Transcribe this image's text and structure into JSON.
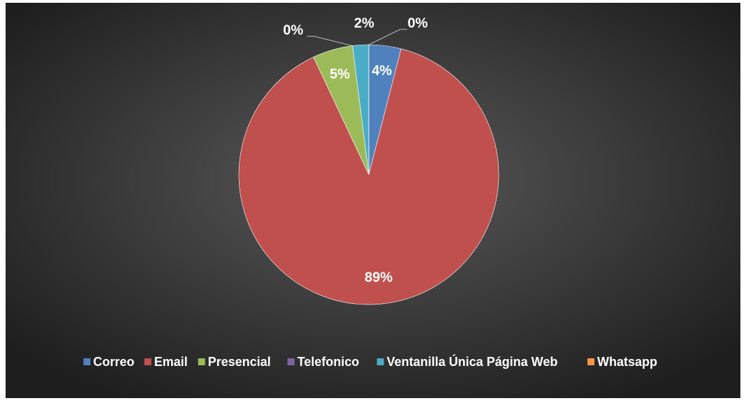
{
  "chart_data": {
    "type": "pie",
    "categories": [
      "Correo",
      "Email",
      "Presencial",
      "Telefonico",
      "Ventanilla Única Página Web",
      "Whatsapp"
    ],
    "values": [
      4,
      89,
      5,
      0,
      2,
      0
    ],
    "value_labels": [
      "4%",
      "89%",
      "5%",
      "0%",
      "2%",
      "0%"
    ],
    "colors": [
      "#4f81bd",
      "#c0504d",
      "#9bbb59",
      "#8064a2",
      "#4bacc6",
      "#f79646"
    ],
    "legend": "bottom"
  }
}
